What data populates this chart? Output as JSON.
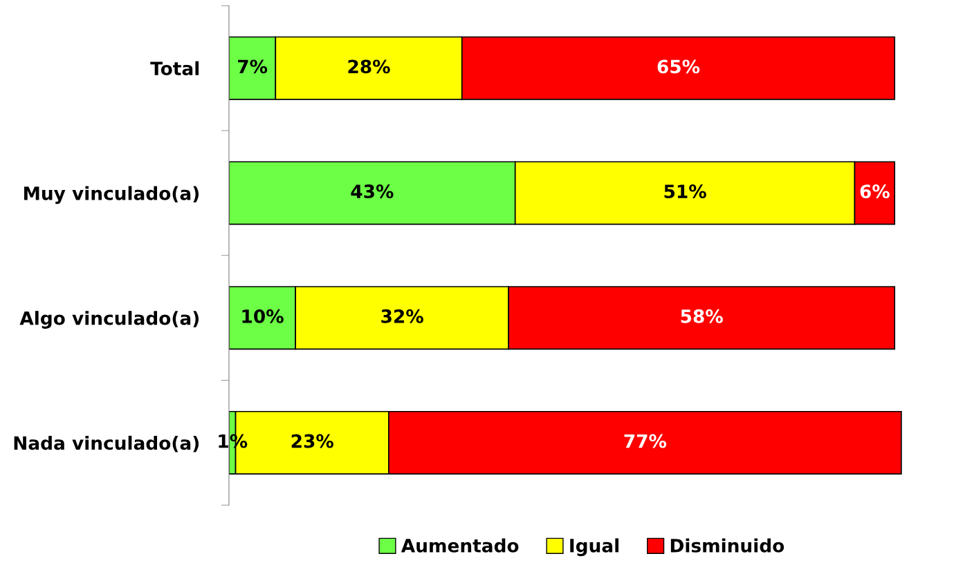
{
  "chart_data": {
    "type": "bar",
    "orientation": "horizontal",
    "stacked": true,
    "categories": [
      "Total",
      "Muy vinculado(a)",
      "Algo vinculado(a)",
      "Nada vinculado(a)"
    ],
    "series": [
      {
        "name": "Aumentado",
        "color": "#6cff46",
        "values": [
          7,
          43,
          10,
          1
        ],
        "value_labels": [
          "7%",
          "43%",
          "10%",
          "1%"
        ]
      },
      {
        "name": "Igual",
        "color": "#ffff00",
        "values": [
          28,
          51,
          32,
          23
        ],
        "value_labels": [
          "28%",
          "51%",
          "32%",
          "23%"
        ]
      },
      {
        "name": "Disminuido",
        "color": "#ff0000",
        "values": [
          65,
          6,
          58,
          77
        ],
        "value_labels": [
          "65%",
          "6%",
          "58%",
          "77%"
        ]
      }
    ],
    "legend": "bottom",
    "grid": false,
    "tick_labels": "y"
  }
}
